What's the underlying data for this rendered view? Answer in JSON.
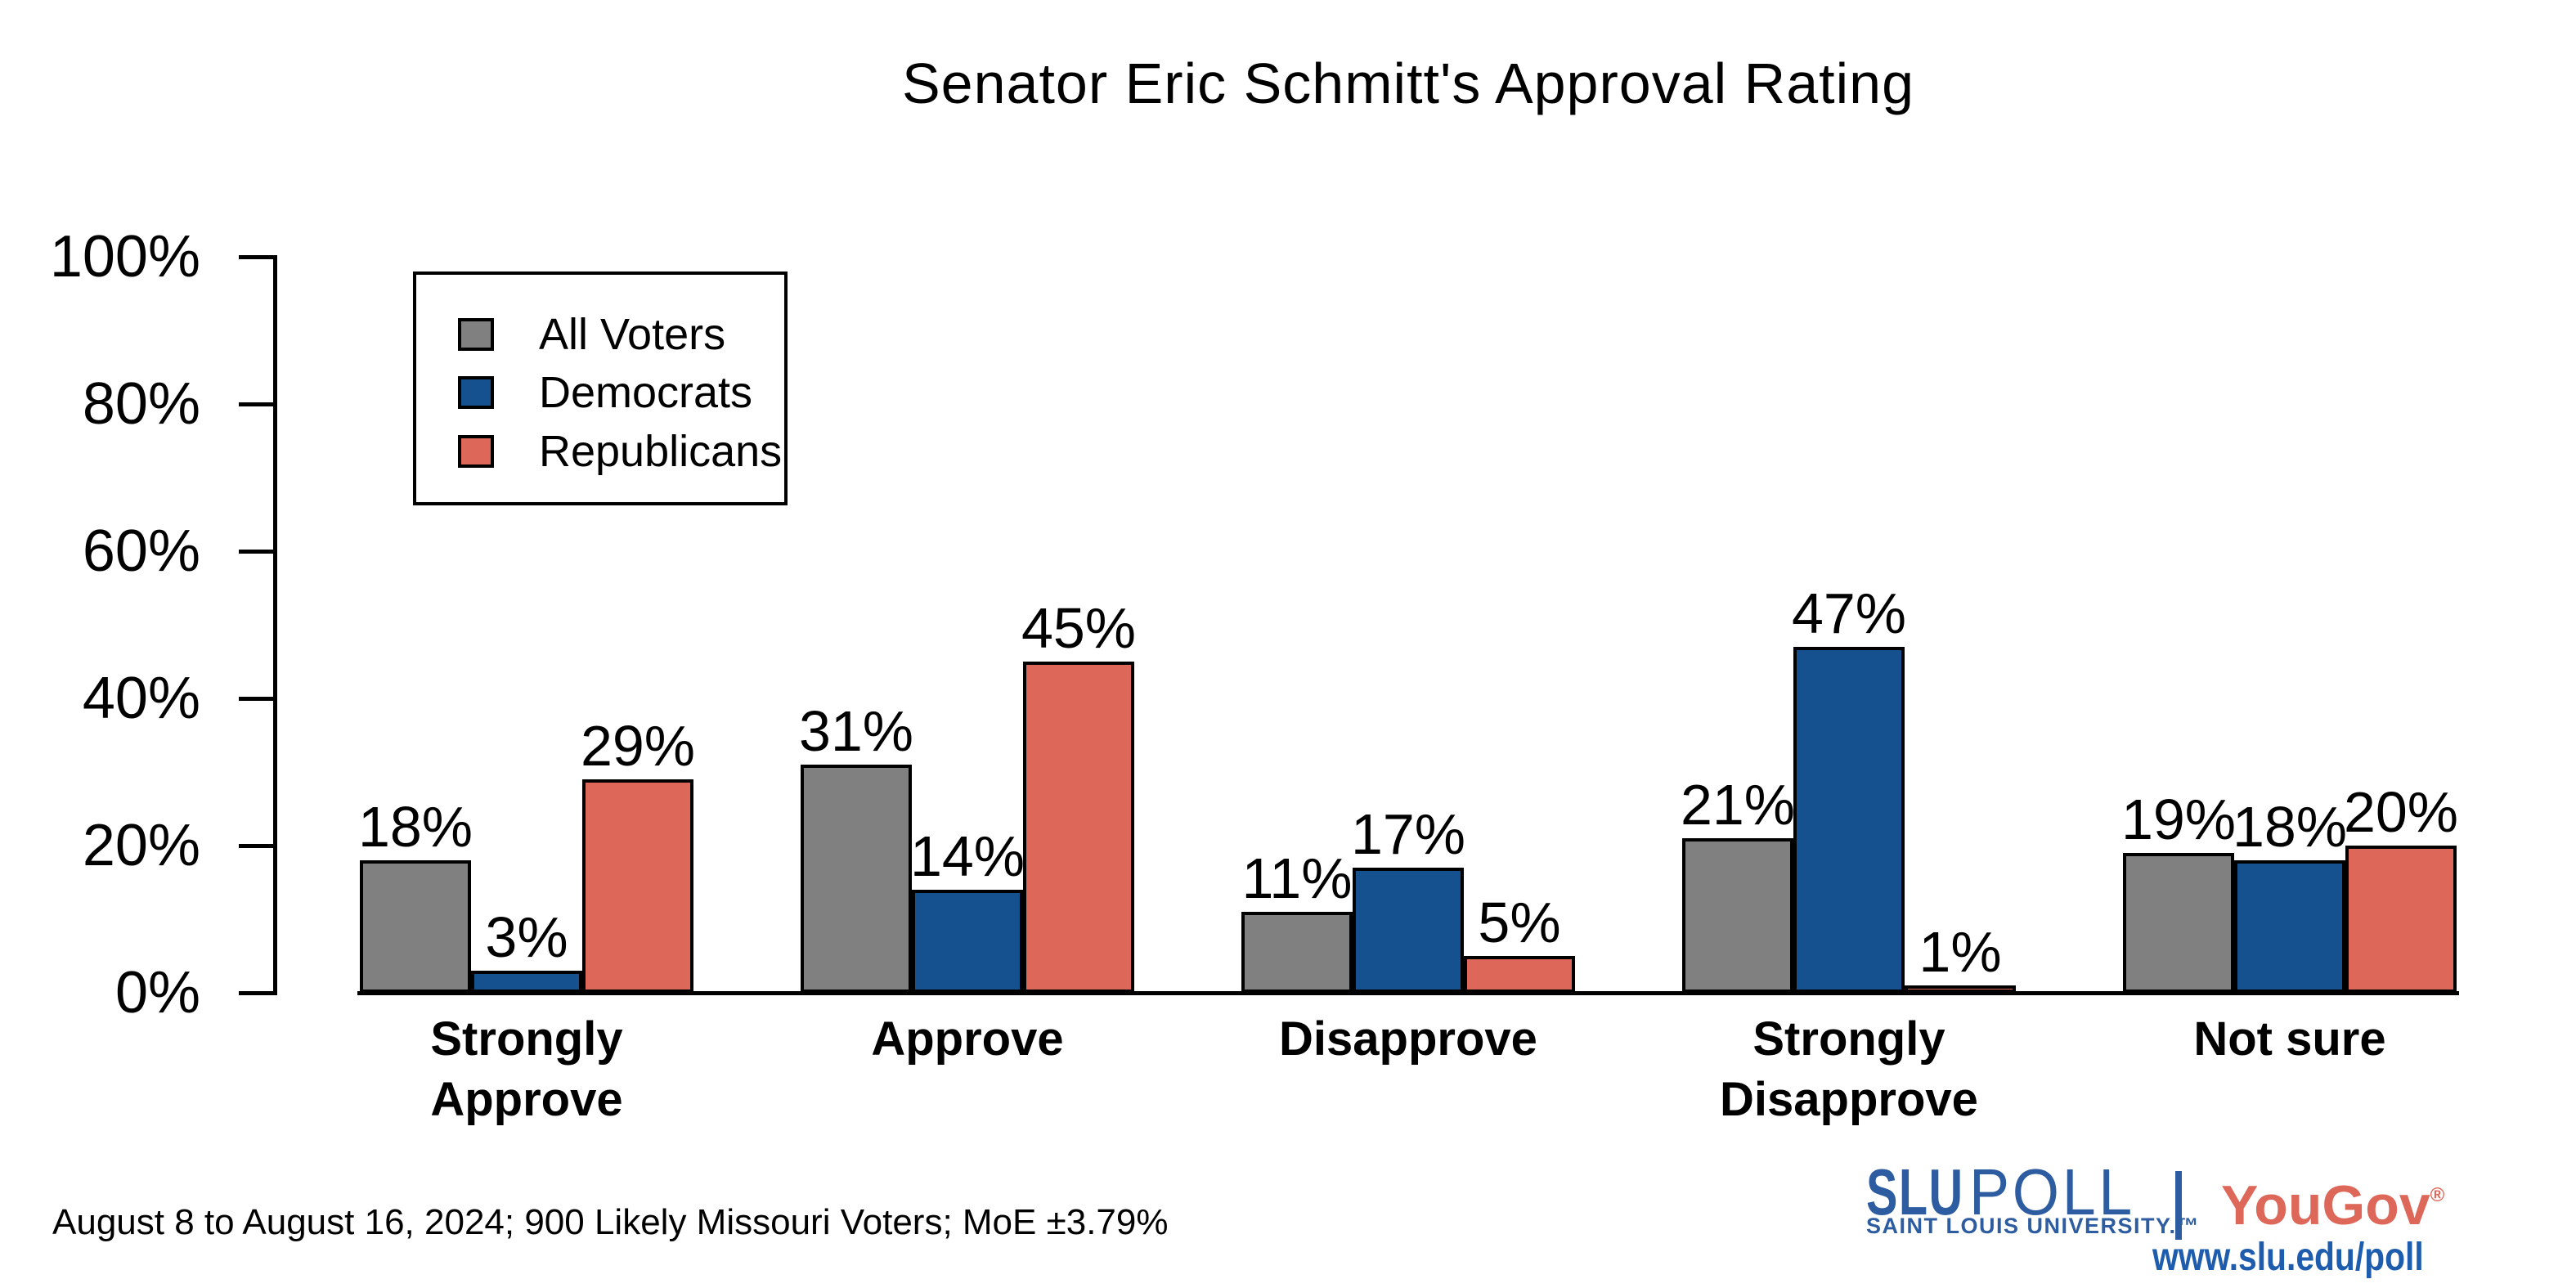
{
  "title": "Senator Eric Schmitt's Approval Rating",
  "chart_data": {
    "type": "bar",
    "title": "Senator Eric Schmitt's Approval Rating",
    "categories": [
      "Strongly Approve",
      "Approve",
      "Disapprove",
      "Strongly Disapprove",
      "Not sure"
    ],
    "category_display_lines": [
      [
        "Strongly",
        "Approve"
      ],
      [
        "Approve"
      ],
      [
        "Disapprove"
      ],
      [
        "Strongly",
        "Disapprove"
      ],
      [
        "Not sure"
      ]
    ],
    "series": [
      {
        "name": "All Voters",
        "color": "#808080",
        "values": [
          18,
          31,
          11,
          21,
          19
        ]
      },
      {
        "name": "Democrats",
        "color": "#15508F",
        "values": [
          3,
          14,
          17,
          47,
          18
        ]
      },
      {
        "name": "Republicans",
        "color": "#DD685A",
        "values": [
          29,
          45,
          5,
          1,
          20
        ]
      }
    ],
    "value_suffix": "%",
    "ylabel": "",
    "ylim": [
      0,
      100
    ],
    "yticks": [
      "0%",
      "20%",
      "40%",
      "60%",
      "80%",
      "100%"
    ],
    "grid": false,
    "legend_position": "upper left",
    "bar_outline_color": "#000000"
  },
  "legend": {
    "items": [
      {
        "label": "All Voters",
        "color": "#808080"
      },
      {
        "label": "Democrats",
        "color": "#15508F"
      },
      {
        "label": "Republicans",
        "color": "#DD685A"
      }
    ]
  },
  "footer": {
    "note": "August 8 to August 16, 2024; 900 Likely Missouri Voters; MoE ±3.79%"
  },
  "branding": {
    "slu_word": "SLU",
    "poll_word": "POLL",
    "slu_subtitle": "SAINT LOUIS UNIVERSITY.™",
    "separator": "|",
    "yougov_word": "YouGov",
    "registered_mark": "®",
    "url": "www.slu.edu/poll",
    "slu_blue": "#2D5CA0",
    "yougov_red": "#DD685A",
    "url_blue": "#1E5CAD"
  }
}
